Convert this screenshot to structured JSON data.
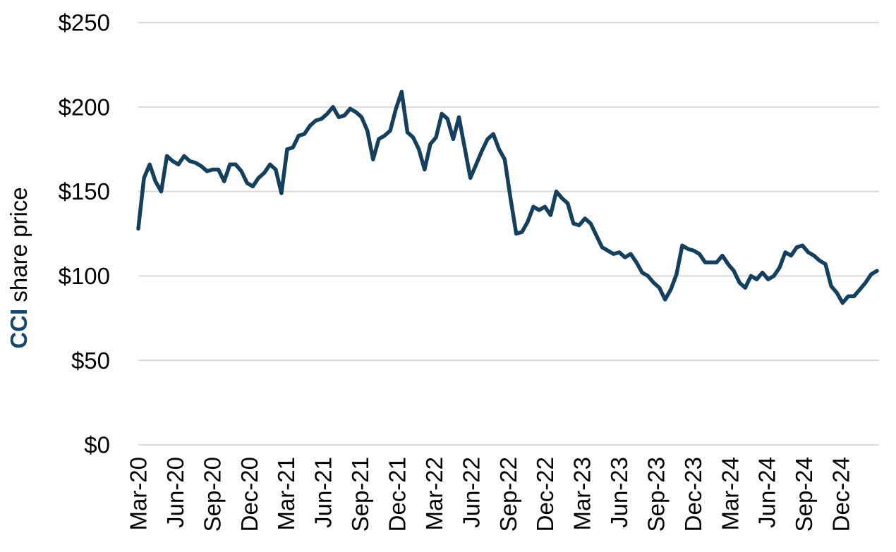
{
  "chart_data": {
    "type": "line",
    "title": "",
    "ylabel_series": "CCI",
    "ylabel_rest": "share price",
    "ylabel_series_color": "#15486a",
    "axis_text_color": "#000000",
    "grid": "horizontal",
    "gridline_color": "#d9d9d9",
    "background_color": "#ffffff",
    "ylim": [
      0,
      250
    ],
    "y_tick_values": [
      0,
      50,
      100,
      150,
      200,
      250
    ],
    "y_tick_labels": [
      "$0",
      "$50",
      "$100",
      "$150",
      "$200",
      "$250"
    ],
    "x_tick_labels": [
      "Mar-20",
      "Jun-20",
      "Sep-20",
      "Dec-20",
      "Mar-21",
      "Jun-21",
      "Sep-21",
      "Dec-21",
      "Mar-22",
      "Jun-22",
      "Sep-22",
      "Dec-22",
      "Mar-23",
      "Jun-23",
      "Sep-23",
      "Dec-23",
      "Mar-24",
      "Jun-24",
      "Sep-24",
      "Dec-24"
    ],
    "legend": "none",
    "series": [
      {
        "name": "CCI share price",
        "color": "#143f5d",
        "sampling": "biweekly",
        "start": "Mar-2020",
        "end": "Feb-2025",
        "values": [
          128,
          158,
          166,
          156,
          150,
          171,
          168,
          166,
          171,
          168,
          167,
          165,
          162,
          163,
          163,
          156,
          166,
          166,
          162,
          155,
          153,
          158,
          161,
          166,
          163,
          149,
          175,
          176,
          183,
          184,
          189,
          192,
          193,
          196,
          200,
          194,
          195,
          199,
          197,
          194,
          186,
          169,
          181,
          183,
          186,
          199,
          209,
          185,
          182,
          175,
          163,
          178,
          182,
          196,
          193,
          181,
          194,
          176,
          158,
          166,
          174,
          181,
          184,
          175,
          169,
          146,
          125,
          126,
          132,
          141,
          139,
          141,
          136,
          150,
          146,
          143,
          131,
          130,
          134,
          131,
          124,
          117,
          115,
          113,
          114,
          111,
          113,
          108,
          102,
          100,
          96,
          93,
          86,
          92,
          101,
          118,
          116,
          115,
          113,
          108,
          108,
          108,
          112,
          107,
          103,
          96,
          93,
          100,
          98,
          102,
          98,
          100,
          105,
          114,
          112,
          117,
          118,
          114,
          112,
          109,
          107,
          94,
          90,
          84,
          88,
          88,
          92,
          96,
          101,
          103
        ]
      }
    ]
  }
}
